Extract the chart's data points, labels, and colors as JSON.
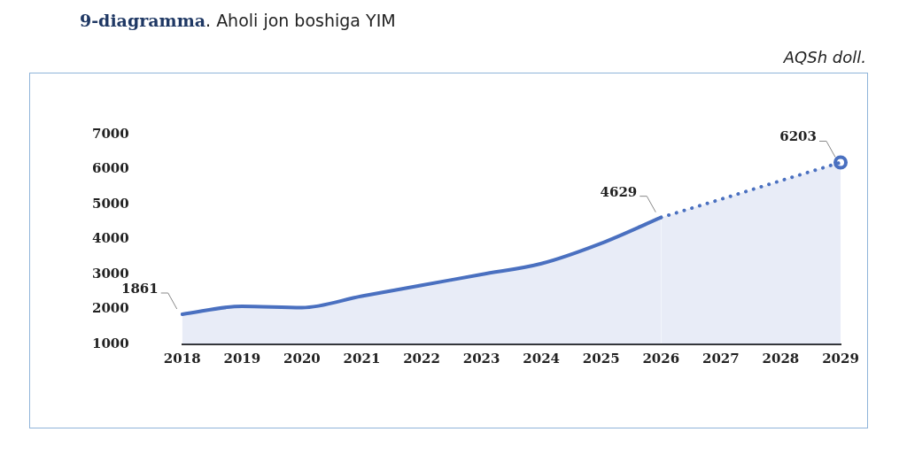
{
  "chart_data": {
    "type": "area",
    "title": "9-diagramma. Aholi jon boshiga YIM",
    "annotations": [
      "AQSh doll."
    ],
    "categories": [
      "2018",
      "2019",
      "2020",
      "2021",
      "2022",
      "2023",
      "2024",
      "2025",
      "2026",
      "2027",
      "2028",
      "2029"
    ],
    "ylim": [
      1000,
      7000
    ],
    "yticks": [
      1000,
      2000,
      3000,
      4000,
      5000,
      6000,
      7000
    ],
    "grid": false,
    "legend": false,
    "series": [
      {
        "color": "#4a70c0",
        "line_style": "solid",
        "values": [
          1861,
          2090,
          2050,
          2380,
          2690,
          3000,
          3310,
          3890,
          4629,
          null,
          null,
          null
        ],
        "value_labels": [
          "1861",
          null,
          null,
          null,
          null,
          null,
          null,
          null,
          "4629",
          null,
          null,
          null
        ]
      },
      {
        "color": "#4a70c0",
        "line_style": "dotted",
        "values": [
          null,
          null,
          null,
          null,
          null,
          null,
          null,
          null,
          4629,
          5150,
          5680,
          6203
        ]
      },
      {
        "type": "scatter",
        "color": "#4a70c0",
        "marker": "circle",
        "values": [
          null,
          null,
          null,
          null,
          null,
          null,
          null,
          null,
          null,
          null,
          null,
          6203
        ],
        "value_labels": [
          null,
          null,
          null,
          null,
          null,
          null,
          null,
          null,
          null,
          null,
          null,
          "6203"
        ]
      }
    ]
  }
}
